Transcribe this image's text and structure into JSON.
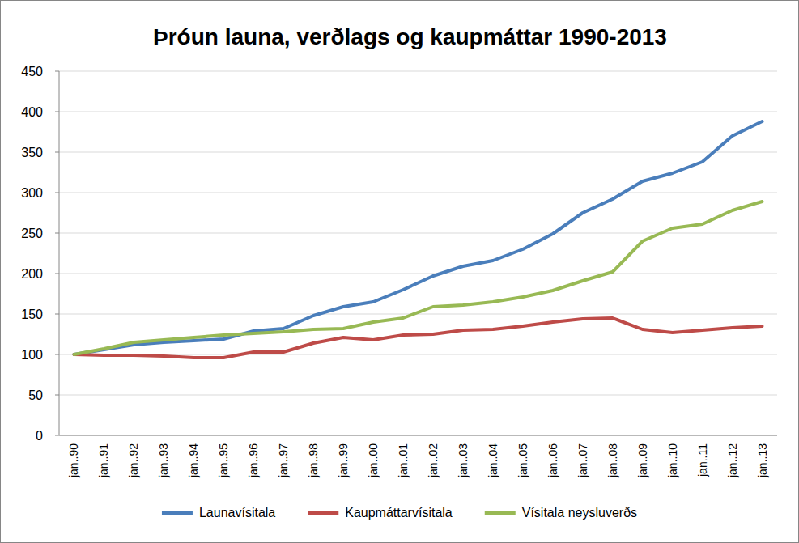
{
  "chart_data": {
    "type": "line",
    "title": "Þróun launa, verðlags og kaupmáttar 1990-2013",
    "categories": [
      "jan..90",
      "jan..91",
      "jan..92",
      "jan..93",
      "jan..94",
      "jan..95",
      "jan..96",
      "jan..97",
      "jan..98",
      "jan..99",
      "jan..00",
      "jan..01",
      "jan..02",
      "jan..03",
      "jan..04",
      "jan..05",
      "jan..06",
      "jan..07",
      "jan..08",
      "jan..09",
      "jan..10",
      "jan..11",
      "jan..12",
      "jan..13"
    ],
    "series": [
      {
        "name": "Launavísitala",
        "color": "#4a7ebb",
        "values": [
          100,
          106,
          112,
          115,
          117,
          119,
          129,
          132,
          148,
          159,
          165,
          180,
          197,
          209,
          216,
          230,
          249,
          275,
          292,
          314,
          324,
          338,
          370,
          388
        ]
      },
      {
        "name": "Kaupmáttarvísitala",
        "color": "#be4b48",
        "values": [
          100,
          99,
          99,
          98,
          96,
          96,
          103,
          103,
          114,
          121,
          118,
          124,
          125,
          130,
          131,
          135,
          140,
          144,
          145,
          131,
          127,
          130,
          133,
          135
        ]
      },
      {
        "name": "Vísitala neysluverðs",
        "color": "#98b954",
        "values": [
          100,
          107,
          115,
          118,
          121,
          124,
          126,
          128,
          131,
          132,
          140,
          145,
          159,
          161,
          165,
          171,
          179,
          191,
          202,
          240,
          256,
          261,
          278,
          289
        ]
      }
    ],
    "ylim": [
      0,
      450
    ],
    "yticks": [
      0,
      50,
      100,
      150,
      200,
      250,
      300,
      350,
      400,
      450
    ],
    "grid": true,
    "legend": "bottom"
  }
}
